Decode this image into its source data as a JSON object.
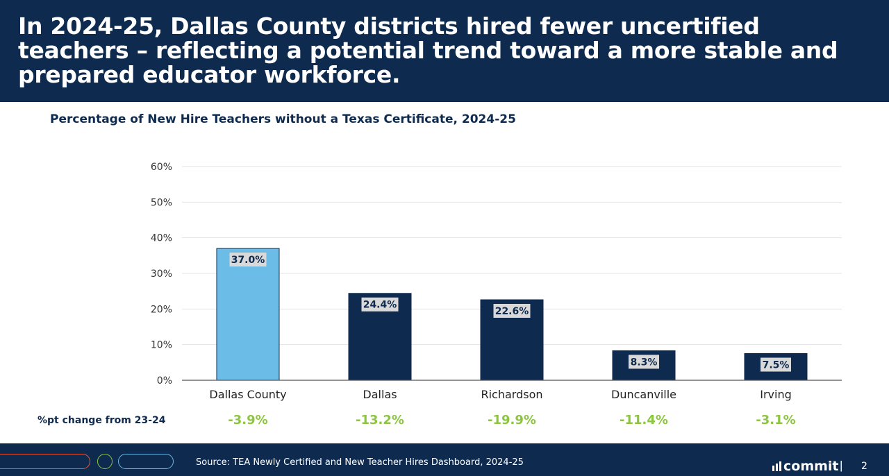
{
  "header": {
    "title": "In 2024-25, Dallas County districts hired fewer uncertified teachers – reflecting a potential trend toward a more stable and prepared educator workforce."
  },
  "chart_data": {
    "type": "bar",
    "title": "Percentage of New Hire Teachers without a Texas Certificate, 2024-25",
    "categories": [
      "Dallas County",
      "Dallas",
      "Richardson",
      "Duncanville",
      "Irving"
    ],
    "values": [
      37.0,
      24.4,
      22.6,
      8.3,
      7.5
    ],
    "data_labels": [
      "37.0%",
      "24.4%",
      "22.6%",
      "8.3%",
      "7.5%"
    ],
    "y_ticks": [
      "0%",
      "10%",
      "20%",
      "30%",
      "40%",
      "50%",
      "60%"
    ],
    "ylim": [
      0,
      60
    ],
    "grid": true,
    "colors": {
      "highlight": "#6bbde8",
      "default": "#0e2a4e",
      "grid": "#e3e3e3",
      "label_bg": "#d9d9d9"
    }
  },
  "change_row": {
    "label": "%pt change from 23-24",
    "values": [
      "-3.9%",
      "-13.2%",
      "-19.9%",
      "-11.4%",
      "-3.1%"
    ]
  },
  "footer": {
    "source": "Source: TEA Newly Certified and New Teacher Hires Dashboard, 2024-25",
    "brand": "commit",
    "separator": "|",
    "page_number": "2"
  }
}
